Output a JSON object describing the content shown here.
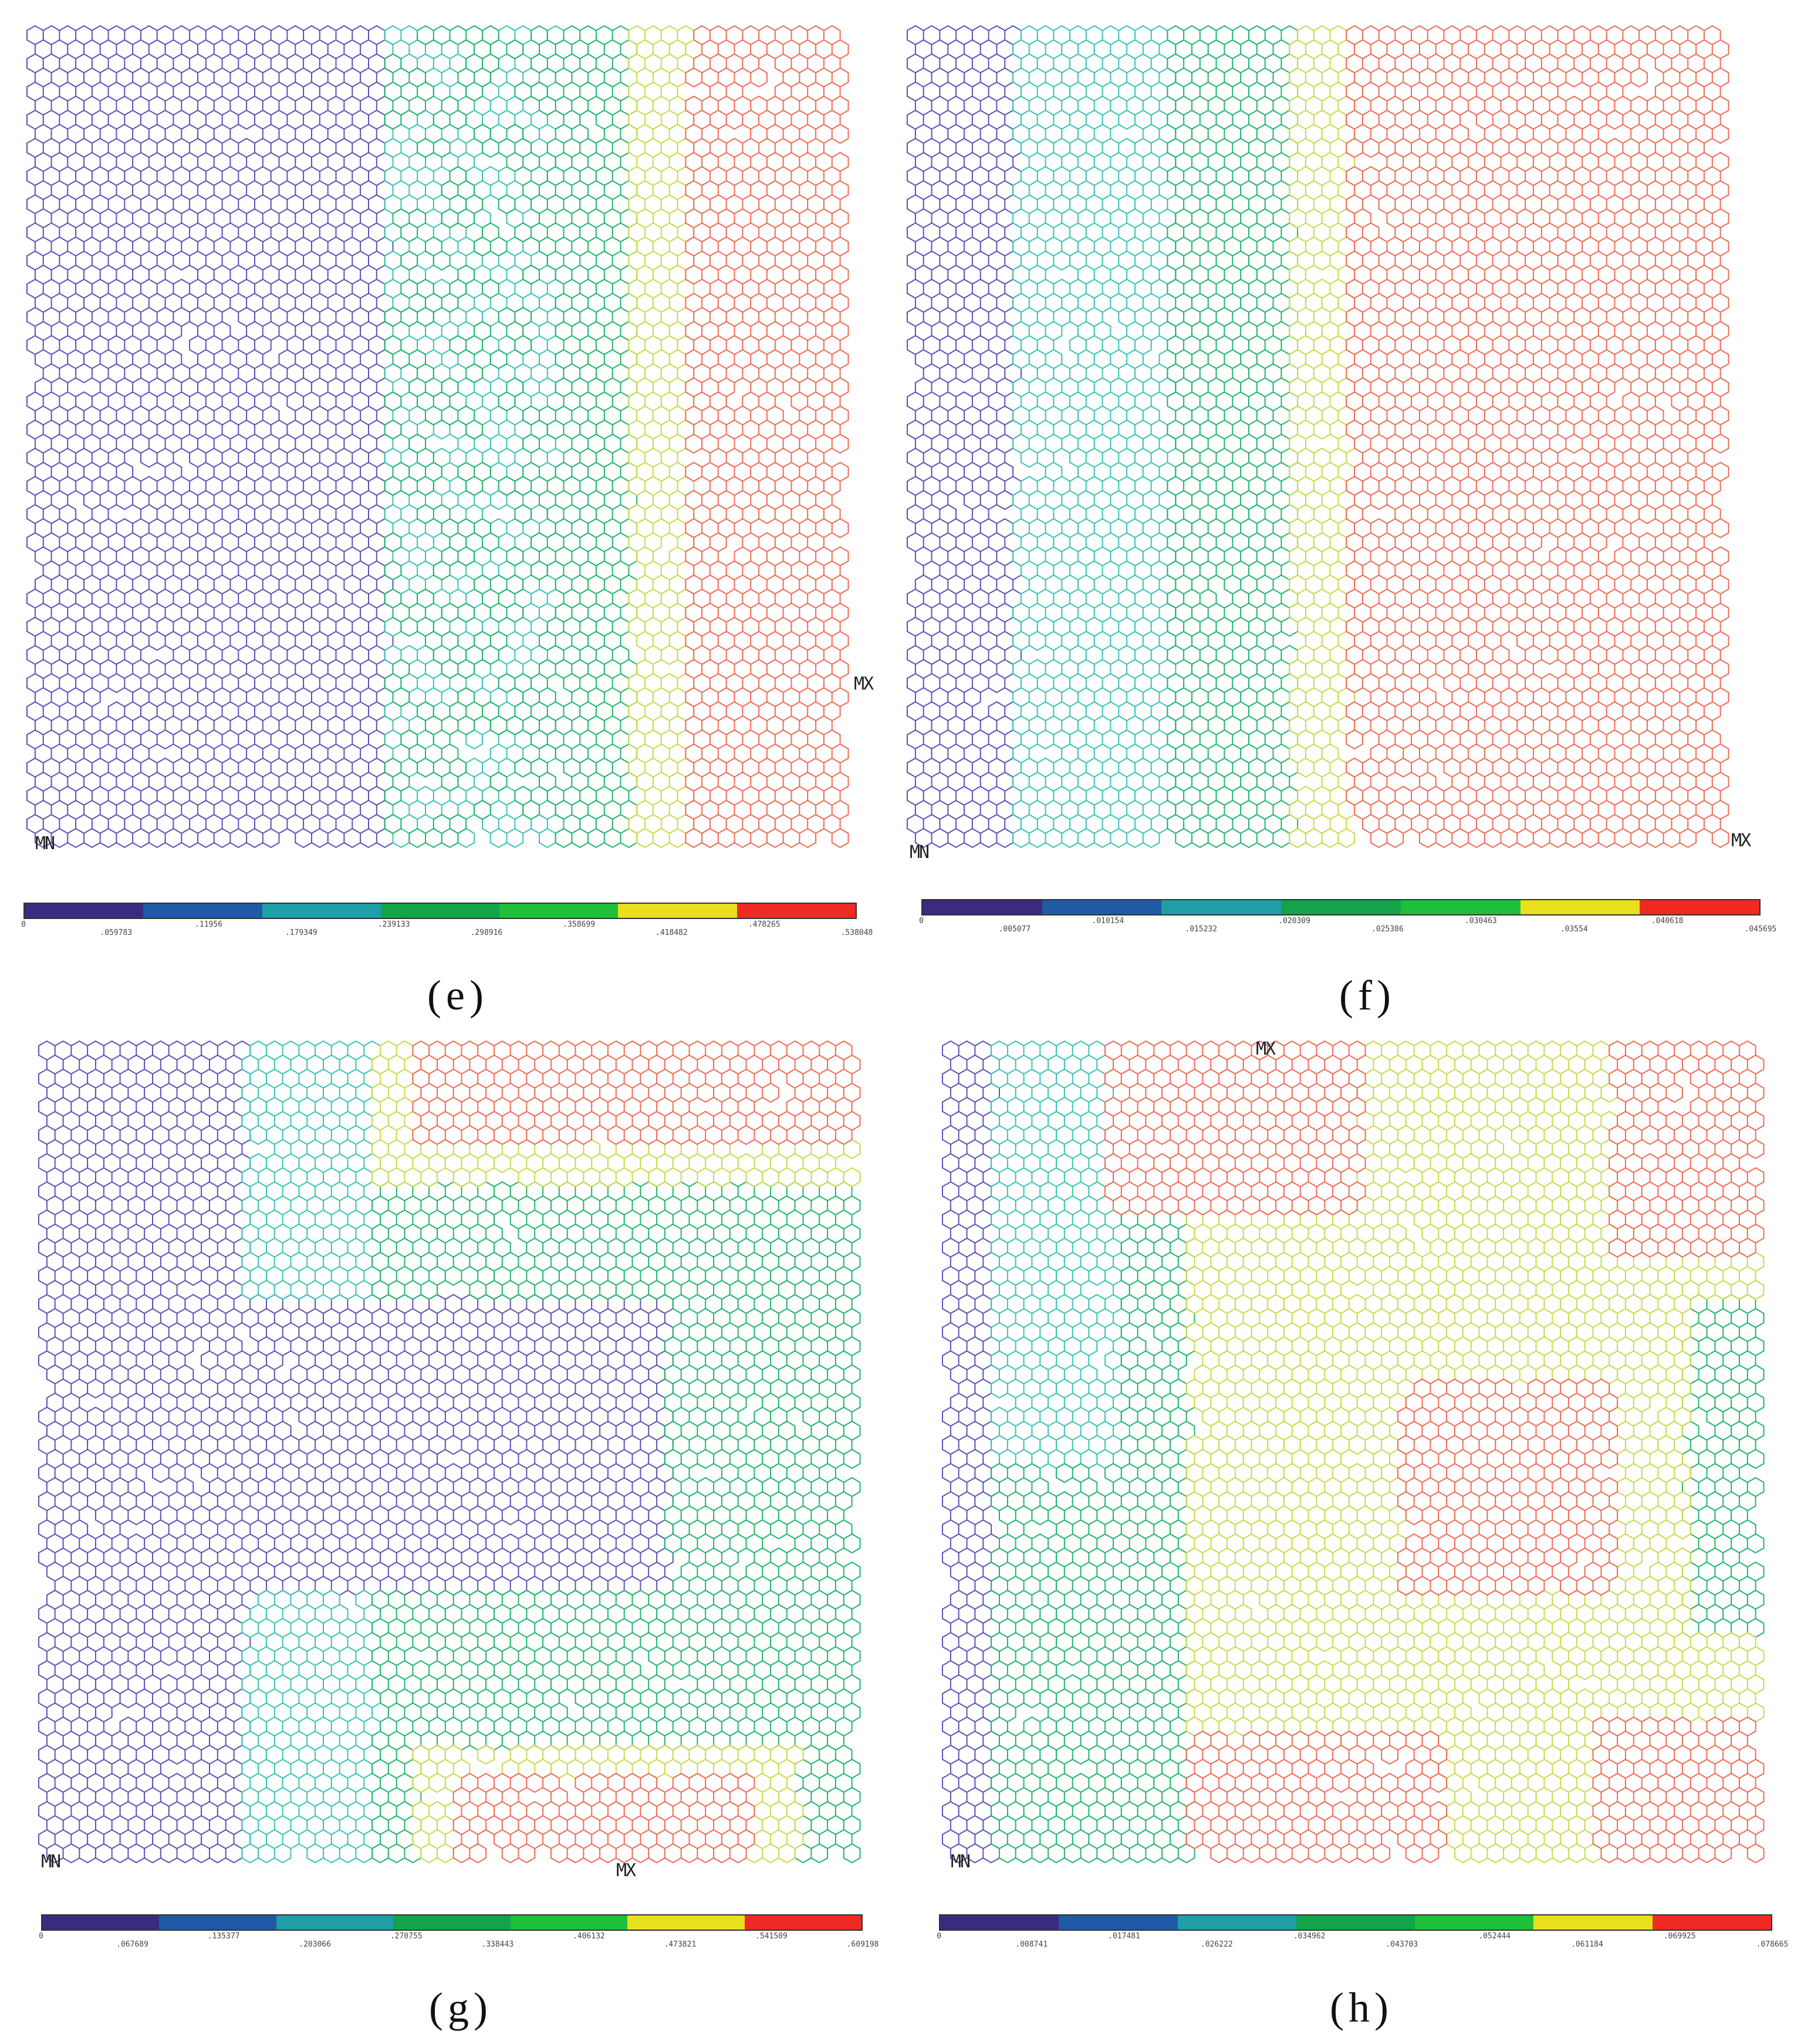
{
  "panels": [
    {
      "id": "e",
      "caption": "(e)",
      "min_label": "MN",
      "max_label": "MX",
      "legend_ticks": [
        "0",
        ".059783",
        ".11956",
        ".179349",
        ".239133",
        ".298916",
        ".358699",
        ".418482",
        ".478265",
        ".538048"
      ],
      "legend_colors": [
        "#3b2a7e",
        "#1f5aa6",
        "#1f9ea8",
        "#12a34b",
        "#1fbf3a",
        "#e8e01c",
        "#ef2a23"
      ],
      "mesh_colors": [
        "#5a52b8",
        "#38c2b8",
        "#1fb56a",
        "#c9d94a",
        "#f06a55"
      ]
    },
    {
      "id": "f",
      "caption": "(f)",
      "min_label": "MN",
      "max_label": "MX",
      "legend_ticks": [
        "0",
        ".005077",
        ".010154",
        ".015232",
        ".020309",
        ".025386",
        ".030463",
        ".03554",
        ".040618",
        ".045695"
      ],
      "legend_colors": [
        "#3b2a7e",
        "#1f5aa6",
        "#1f9ea8",
        "#12a34b",
        "#1fbf3a",
        "#e8e01c",
        "#ef2a23"
      ],
      "mesh_colors": [
        "#5a52b8",
        "#38c2b8",
        "#1fb56a",
        "#c9d94a",
        "#f06a55"
      ]
    },
    {
      "id": "g",
      "caption": "(g)",
      "min_label": "MN",
      "max_label": "MX",
      "legend_ticks": [
        "0",
        ".067689",
        ".135377",
        ".203066",
        ".270755",
        ".338443",
        ".406132",
        ".473821",
        ".541509",
        ".609198"
      ],
      "legend_colors": [
        "#3b2a7e",
        "#1f5aa6",
        "#1f9ea8",
        "#12a34b",
        "#1fbf3a",
        "#e8e01c",
        "#ef2a23"
      ],
      "mesh_colors": [
        "#5a52b8",
        "#38c2b8",
        "#1fb56a",
        "#c9d94a",
        "#f06a55"
      ]
    },
    {
      "id": "h",
      "caption": "(h)",
      "min_label": "MN",
      "max_label": "MX",
      "legend_ticks": [
        "0",
        ".008741",
        ".017481",
        ".026222",
        ".034962",
        ".043703",
        ".052444",
        ".061184",
        ".069925",
        ".078665"
      ],
      "legend_colors": [
        "#3b2a7e",
        "#1f5aa6",
        "#1f9ea8",
        "#12a34b",
        "#1fbf3a",
        "#e8e01c",
        "#ef2a23"
      ],
      "mesh_colors": [
        "#5a52b8",
        "#38c2b8",
        "#1fb56a",
        "#c9d94a",
        "#f06a55"
      ]
    }
  ]
}
